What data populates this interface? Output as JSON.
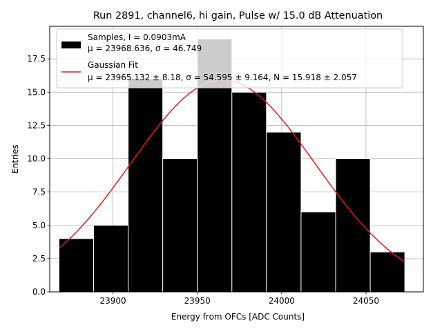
{
  "chart_data": {
    "type": "histogram",
    "title": "Run 2891, channel6, hi gain, Pulse w/ 15.0 dB Attenuation",
    "xlabel": "Energy from OFCs [ADC Counts]",
    "ylabel": "Entries",
    "xlim": [
      23862.5,
      24084.0
    ],
    "ylim": [
      0,
      19.95
    ],
    "xticks": [
      23900,
      23950,
      24000,
      24050
    ],
    "yticks": [
      0.0,
      2.5,
      5.0,
      7.5,
      10.0,
      12.5,
      15.0,
      17.5
    ],
    "xtick_labels": [
      "23900",
      "23950",
      "24000",
      "24050"
    ],
    "ytick_labels": [
      "0.0",
      "2.5",
      "5.0",
      "7.5",
      "10.0",
      "12.5",
      "15.0",
      "17.5"
    ],
    "grid": true,
    "legend_position": "top-left",
    "series": [
      {
        "kind": "bars",
        "bin_edges": [
          23868.0,
          23888.5,
          23909.0,
          23929.5,
          23950.0,
          23970.5,
          23991.0,
          24011.5,
          24032.0,
          24052.5,
          24073.0
        ],
        "values": [
          4,
          5,
          16,
          10,
          19,
          15,
          12,
          6,
          10,
          3
        ],
        "color": "#000000",
        "legend_lines": [
          "Samples, I = 0.0903mA",
          "μ = 23968.636, σ = 46.749"
        ]
      },
      {
        "kind": "gaussian_fit",
        "mu": 23965.132,
        "sigma": 54.595,
        "amplitude": 15.918,
        "x_range": [
          23868.0,
          24073.0
        ],
        "color": "#e41a1c",
        "legend_lines": [
          "Gaussian Fit",
          "μ = 23965.132 ± 8.18, σ = 54.595 ± 9.164, N = 15.918 ± 2.057"
        ]
      }
    ]
  }
}
